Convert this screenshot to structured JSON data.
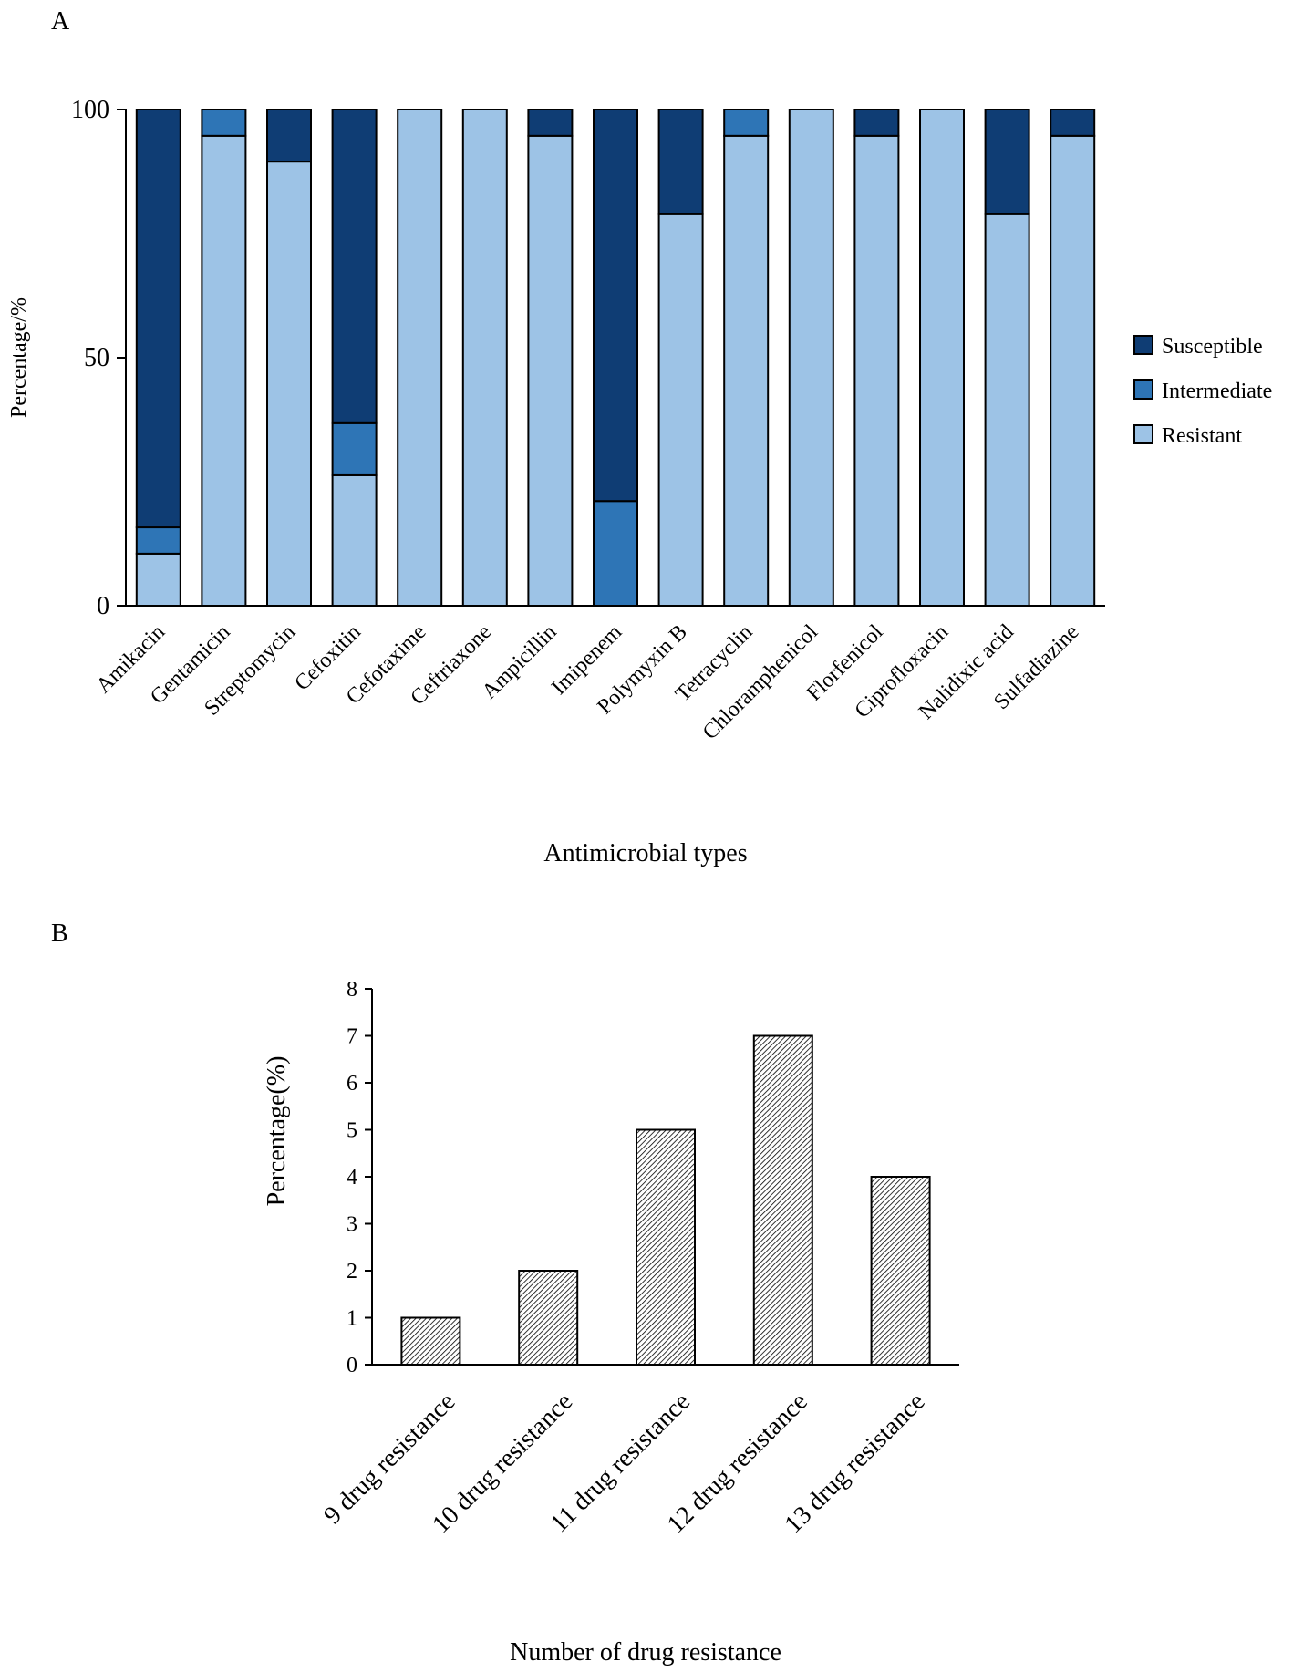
{
  "chart_data": [
    {
      "panel_label": "A",
      "type": "bar",
      "stacked": true,
      "title": "",
      "xlabel": "Antimicrobial types",
      "ylabel": "Percentage/%",
      "ylim": [
        0,
        100
      ],
      "yticks": [
        "0",
        "50",
        "100"
      ],
      "categories": [
        "Amikacin",
        "Gentamicin",
        "Streptomycin",
        "Cefoxitin",
        "Cefotaxime",
        "Ceftriaxone",
        "Ampicillin",
        "Imipenem",
        "Polymyxin B",
        "Tetracyclin",
        "Chloramphenicol",
        "Florfenicol",
        "Ciprofloxacin",
        "Nalidixic acid",
        "Sulfadiazine"
      ],
      "series": [
        {
          "name": "Resistant",
          "color": "#9dc3e6",
          "values": [
            10.5,
            94.7,
            89.5,
            26.3,
            100,
            100,
            94.7,
            0,
            78.9,
            94.7,
            100,
            94.7,
            100,
            78.9,
            94.7
          ]
        },
        {
          "name": "Intermediate",
          "color": "#2e75b6",
          "values": [
            5.3,
            5.3,
            0,
            10.5,
            0,
            0,
            0,
            21.1,
            0,
            5.3,
            0,
            0,
            0,
            0,
            0
          ]
        },
        {
          "name": "Susceptible",
          "color": "#0f3d74",
          "values": [
            84.2,
            0,
            10.5,
            63.2,
            0,
            0,
            5.3,
            78.9,
            21.1,
            0,
            0,
            5.3,
            0,
            21.1,
            5.3
          ]
        }
      ],
      "legend": {
        "placement": "right",
        "entries": [
          "Susceptible",
          "Intermediate",
          "Resistant"
        ]
      }
    },
    {
      "panel_label": "B",
      "type": "bar",
      "title": "",
      "xlabel": "Number of drug resistance",
      "ylabel": "Percentage(%)",
      "ylim": [
        0,
        8
      ],
      "yticks": [
        "0",
        "1",
        "2",
        "3",
        "4",
        "5",
        "6",
        "7",
        "8"
      ],
      "categories": [
        "9 drug resistance",
        "10 drug resistance",
        "11 drug resistance",
        "12 drug resistance",
        "13 drug resistance"
      ],
      "values": [
        1,
        2,
        5,
        7,
        4
      ],
      "fill": "hatched"
    }
  ]
}
